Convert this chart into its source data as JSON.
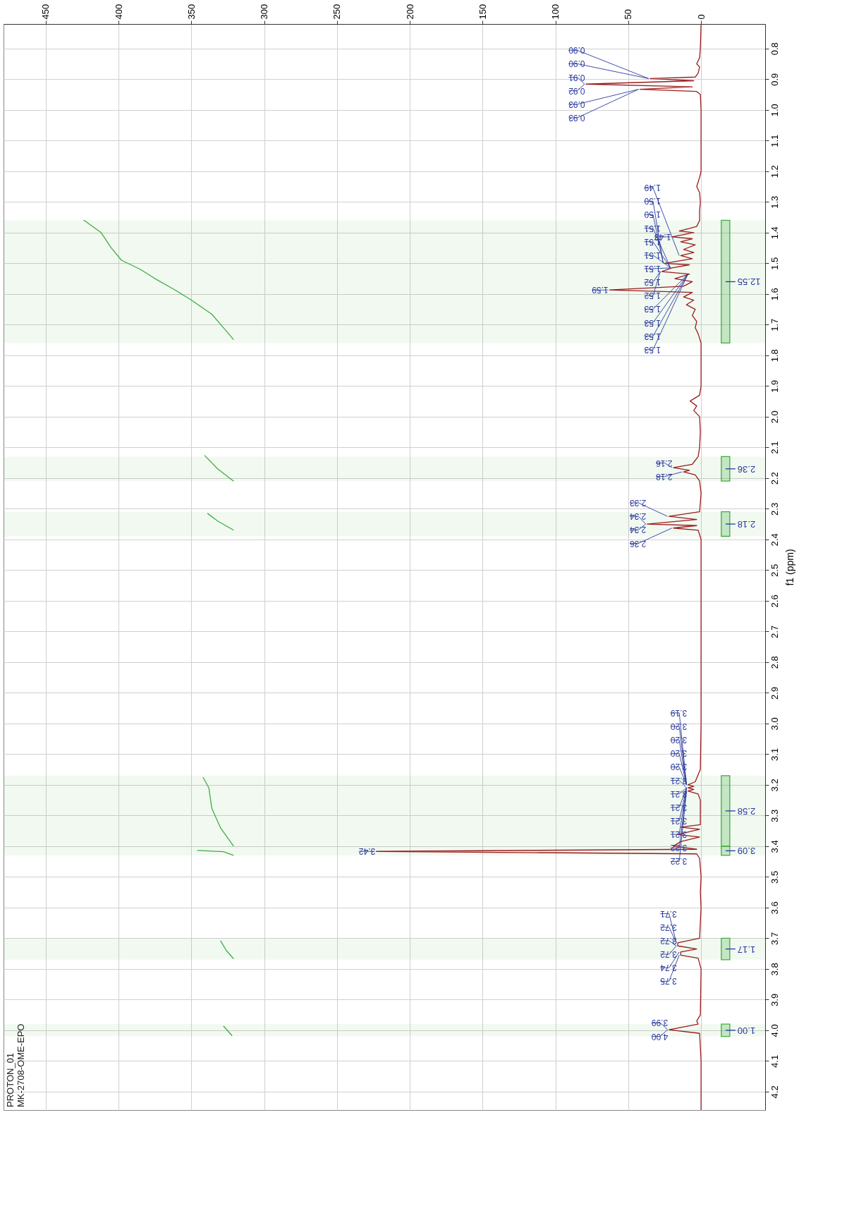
{
  "chart_data": {
    "type": "line",
    "ylabel": "f1 (ppm)",
    "ylim": [
      4.26,
      0.72
    ],
    "yticks": [
      0.8,
      0.9,
      {
        "value": 1,
        "label": "1.0"
      },
      1.1,
      1.2,
      1.3,
      1.4,
      1.5,
      1.6,
      1.7,
      1.8,
      1.9,
      {
        "value": 2,
        "label": "2.0"
      },
      2.1,
      2.2,
      2.3,
      2.4,
      2.5,
      2.6,
      2.7,
      2.8,
      2.9,
      {
        "value": 3,
        "label": "3.0"
      },
      3.1,
      3.2,
      3.3,
      3.4,
      3.5,
      3.6,
      3.7,
      3.8,
      3.9,
      {
        "value": 4,
        "label": "4.0"
      },
      4.1,
      4.2
    ],
    "xlim": [
      479,
      -44
    ],
    "xticks": [
      0,
      50,
      100,
      150,
      200,
      250,
      300,
      350,
      400,
      450
    ],
    "grid": true,
    "series": [
      {
        "color": "#9b1c1c",
        "values": [
          0.72,
          0.8,
          0.83,
          0.85,
          0.86,
          0.88,
          0.893,
          0.898,
          0.905,
          0.916,
          0.925,
          0.933,
          0.94,
          0.95,
          1.0,
          1.2,
          1.22,
          1.25,
          1.27,
          1.3,
          1.33,
          1.36,
          1.38,
          1.395,
          1.4,
          1.414,
          1.42,
          1.43,
          1.44,
          1.455,
          1.465,
          1.475,
          1.485,
          1.5,
          1.505,
          1.515,
          1.527,
          1.535,
          1.55,
          1.56,
          1.575,
          1.587,
          1.595,
          1.61,
          1.62,
          1.635,
          1.65,
          1.67,
          1.69,
          1.71,
          1.73,
          1.76,
          1.9,
          1.93,
          1.949,
          1.965,
          1.98,
          2.0,
          2.05,
          2.1,
          2.13,
          2.155,
          2.166,
          2.175,
          2.18,
          2.19,
          2.21,
          2.25,
          2.31,
          2.325,
          2.335,
          2.35,
          2.355,
          2.363,
          2.37,
          2.4,
          3.0,
          3.15,
          3.19,
          3.2,
          3.205,
          3.21,
          3.215,
          3.22,
          3.23,
          3.25,
          3.33,
          3.338,
          3.345,
          3.362,
          3.37,
          3.385,
          3.4,
          3.41,
          3.417,
          3.425,
          3.44,
          3.5,
          3.55,
          3.6,
          3.7,
          3.715,
          3.725,
          3.735,
          3.745,
          3.755,
          3.765,
          3.8,
          3.95,
          3.97,
          3.98,
          3.998,
          4.01,
          4.1,
          4.26
        ],
        "x": [
          0,
          0.5,
          1,
          3,
          1,
          2,
          4,
          35,
          5,
          79,
          6,
          42,
          3,
          0.5,
          0,
          0,
          1,
          3,
          1,
          0.5,
          1,
          1,
          3,
          15,
          5,
          20,
          6,
          14,
          4,
          12,
          5,
          14,
          6,
          25,
          8,
          20,
          27,
          8,
          18,
          6,
          12,
          63,
          6,
          12,
          5,
          10,
          4,
          6,
          3,
          4,
          2,
          0,
          0,
          1,
          7.5,
          3,
          5,
          1,
          0.5,
          1,
          2,
          6,
          19,
          8,
          12,
          4,
          1,
          0,
          1,
          22,
          3,
          37,
          3,
          19,
          2,
          0,
          0,
          0.5,
          4,
          9,
          5,
          9,
          5,
          9,
          2,
          0.5,
          0.5,
          14,
          1,
          16,
          1,
          14,
          19,
          3,
          223,
          3,
          1,
          0,
          0.5,
          0,
          1,
          16,
          16,
          3,
          14,
          14,
          2,
          0,
          0.5,
          3,
          2,
          22,
          1,
          0,
          0
        ]
      },
      {
        "color": "#3fae3f",
        "values": [
          1.359,
          1.4,
          1.45,
          1.49,
          1.52,
          1.55,
          1.585,
          1.62,
          1.666,
          1.71,
          1.749
        ],
        "x": [
          424,
          412,
          405,
          398,
          385,
          375,
          362,
          350,
          336,
          328,
          321
        ]
      },
      {
        "color": "#3fae3f",
        "values": [
          2.126,
          2.17,
          2.21
        ],
        "x": [
          341,
          332,
          321
        ]
      },
      {
        "color": "#3fae3f",
        "values": [
          2.315,
          2.34,
          2.37
        ],
        "x": [
          339,
          332,
          321
        ]
      },
      {
        "color": "#3fae3f",
        "values": [
          3.175,
          3.21,
          3.276,
          3.34,
          3.4
        ],
        "x": [
          342,
          338,
          336,
          330,
          321
        ]
      },
      {
        "color": "#3fae3f",
        "values": [
          3.414,
          3.418,
          3.43
        ],
        "x": [
          346,
          328,
          321
        ]
      },
      {
        "color": "#3fae3f",
        "values": [
          3.708,
          3.74,
          3.767
        ],
        "x": [
          330,
          326,
          321
        ]
      },
      {
        "color": "#3fae3f",
        "values": [
          3.986,
          4.018
        ],
        "x": [
          328,
          322
        ]
      }
    ],
    "bands": [
      {
        "axis": "y",
        "from": 1.36,
        "to": 1.76,
        "label": "12.55",
        "color": "#3fae3f"
      },
      {
        "axis": "y",
        "from": 2.13,
        "to": 2.21,
        "label": "2.36",
        "color": "#3fae3f"
      },
      {
        "axis": "y",
        "from": 2.31,
        "to": 2.39,
        "label": "2.18",
        "color": "#3fae3f"
      },
      {
        "axis": "y",
        "from": 3.17,
        "to": 3.4,
        "label": "2.58",
        "color": "#3fae3f"
      },
      {
        "axis": "y",
        "from": 3.4,
        "to": 3.43,
        "label": "3.09",
        "color": "#3fae3f"
      },
      {
        "axis": "y",
        "from": 3.7,
        "to": 3.77,
        "label": "1.17",
        "color": "#3fae3f"
      },
      {
        "axis": "y",
        "from": 3.98,
        "to": 4.02,
        "label": "1.00",
        "color": "#3fae3f"
      }
    ],
    "annotations": [
      {
        "text": "0.90",
        "y": 0.898,
        "x": 35
      },
      {
        "text": "0.90",
        "y": 0.898,
        "x": 35
      },
      {
        "text": "0.91",
        "y": 0.916,
        "x": 79
      },
      {
        "text": "0.92",
        "y": 0.916,
        "x": 79
      },
      {
        "text": "0.93",
        "y": 0.933,
        "x": 42
      },
      {
        "text": "0.93",
        "y": 0.933,
        "x": 42
      },
      {
        "text": "1.43",
        "y": 1.414,
        "x": 20
      },
      {
        "text": "1.49",
        "y": 1.475,
        "x": 14
      },
      {
        "text": "1.50",
        "y": 1.5,
        "x": 25
      },
      {
        "text": "1.50",
        "y": 1.5,
        "x": 25
      },
      {
        "text": "1.51",
        "y": 1.515,
        "x": 20
      },
      {
        "text": "1.51",
        "y": 1.515,
        "x": 20
      },
      {
        "text": "1.51",
        "y": 1.515,
        "x": 20
      },
      {
        "text": "1.51",
        "y": 1.515,
        "x": 20
      },
      {
        "text": "1.52",
        "y": 1.527,
        "x": 27
      },
      {
        "text": "1.52",
        "y": 1.527,
        "x": 27
      },
      {
        "text": "1.53",
        "y": 1.535,
        "x": 8
      },
      {
        "text": "1.53",
        "y": 1.535,
        "x": 8
      },
      {
        "text": "1.53",
        "y": 1.535,
        "x": 8
      },
      {
        "text": "1.53",
        "y": 1.535,
        "x": 8
      },
      {
        "text": "1.59",
        "y": 1.587,
        "x": 63
      },
      {
        "text": "2.16",
        "y": 2.166,
        "x": 19
      },
      {
        "text": "2.18",
        "y": 2.18,
        "x": 12
      },
      {
        "text": "2.33",
        "y": 2.325,
        "x": 22
      },
      {
        "text": "2.34",
        "y": 2.35,
        "x": 37
      },
      {
        "text": "2.34",
        "y": 2.35,
        "x": 37
      },
      {
        "text": "2.36",
        "y": 2.363,
        "x": 19
      },
      {
        "text": "3.19",
        "y": 3.2,
        "x": 9
      },
      {
        "text": "3.20",
        "y": 3.2,
        "x": 9
      },
      {
        "text": "3.20",
        "y": 3.2,
        "x": 9
      },
      {
        "text": "3.20",
        "y": 3.2,
        "x": 9
      },
      {
        "text": "3.20",
        "y": 3.2,
        "x": 9
      },
      {
        "text": "3.21",
        "y": 3.21,
        "x": 9
      },
      {
        "text": "3.21",
        "y": 3.21,
        "x": 9
      },
      {
        "text": "3.21",
        "y": 3.21,
        "x": 9
      },
      {
        "text": "3.21",
        "y": 3.21,
        "x": 9
      },
      {
        "text": "3.21",
        "y": 3.21,
        "x": 9
      },
      {
        "text": "3.22",
        "y": 3.22,
        "x": 9
      },
      {
        "text": "3.22",
        "y": 3.22,
        "x": 9
      },
      {
        "text": "3.42",
        "y": 3.417,
        "x": 223
      },
      {
        "text": "3.71",
        "y": 3.715,
        "x": 16
      },
      {
        "text": "3.72",
        "y": 3.715,
        "x": 16
      },
      {
        "text": "3.72",
        "y": 3.725,
        "x": 16
      },
      {
        "text": "3.72",
        "y": 3.725,
        "x": 16
      },
      {
        "text": "3.74",
        "y": 3.745,
        "x": 14
      },
      {
        "text": "3.75",
        "y": 3.755,
        "x": 14
      },
      {
        "text": "3.99",
        "y": 3.998,
        "x": 22
      },
      {
        "text": "4.00",
        "y": 3.998,
        "x": 22
      },
      "PROTON_01",
      "MK-2708-OME-EPO"
    ]
  }
}
